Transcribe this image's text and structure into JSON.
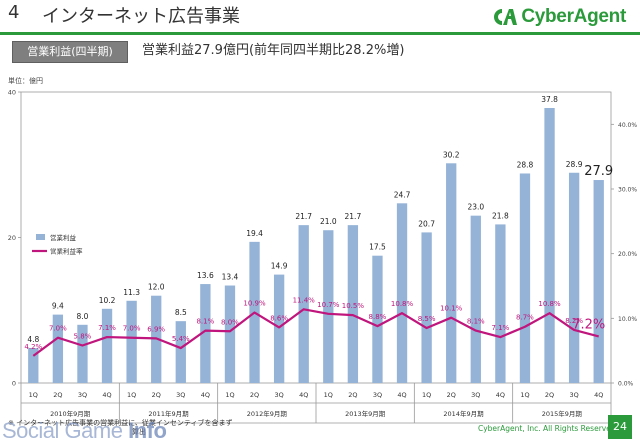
{
  "header": {
    "section_number": "4",
    "title": "インターネット広告事業",
    "logo_text": "CyberAgent"
  },
  "subtitle": {
    "badge": "営業利益(四半期)",
    "description": "営業利益27.9億円(前年同四半期比28.2%増)"
  },
  "chart_data": {
    "type": "bar",
    "unit_label": "単位：億円",
    "categories": [
      "1Q",
      "2Q",
      "3Q",
      "4Q",
      "1Q",
      "2Q",
      "3Q",
      "4Q",
      "1Q",
      "2Q",
      "3Q",
      "4Q",
      "1Q",
      "2Q",
      "3Q",
      "4Q",
      "1Q",
      "2Q",
      "3Q",
      "4Q",
      "1Q",
      "2Q",
      "3Q",
      "4Q"
    ],
    "year_groups": [
      {
        "label": "2010年9月期",
        "quarters": 4
      },
      {
        "label": "2011年9月期",
        "quarters": 4
      },
      {
        "label": "2012年9月期",
        "quarters": 4
      },
      {
        "label": "2013年9月期",
        "quarters": 4
      },
      {
        "label": "2014年9月期",
        "quarters": 4
      },
      {
        "label": "2015年9月期",
        "quarters": 4
      }
    ],
    "series": [
      {
        "name": "営業利益",
        "kind": "bar",
        "axis": "left",
        "color": "#95b3d7",
        "values": [
          4.8,
          9.4,
          8.0,
          10.2,
          11.3,
          12.0,
          8.5,
          13.6,
          13.4,
          19.4,
          14.9,
          21.7,
          21.0,
          21.7,
          17.5,
          24.7,
          20.7,
          30.2,
          23.0,
          21.8,
          28.8,
          37.8,
          28.9,
          27.9
        ],
        "labels": [
          "4.8",
          "9.4",
          "8.0",
          "10.2",
          "11.3",
          "12.0",
          "8.5",
          "13.6",
          "13.4",
          "19.4",
          "14.9",
          "21.7",
          "21.0",
          "21.7",
          "17.5",
          "24.7",
          "20.7",
          "30.2",
          "23.0",
          "21.8",
          "28.8",
          "37.8",
          "28.9",
          "27.9"
        ]
      },
      {
        "name": "営業利益率",
        "kind": "line",
        "axis": "right",
        "color": "#c0157c",
        "values": [
          4.2,
          7.0,
          5.8,
          7.1,
          7.0,
          6.9,
          5.4,
          8.1,
          8.0,
          10.9,
          8.6,
          11.4,
          10.7,
          10.5,
          8.8,
          10.8,
          8.5,
          10.1,
          8.1,
          7.1,
          8.7,
          10.8,
          8.2,
          7.2
        ],
        "labels": [
          "4.2%",
          "7.0%",
          "5.8%",
          "7.1%",
          "7.0%",
          "6.9%",
          "5.4%",
          "8.1%",
          "8.0%",
          "10.9%",
          "8.6%",
          "11.4%",
          "10.7%",
          "10.5%",
          "8.8%",
          "10.8%",
          "8.5%",
          "10.1%",
          "8.1%",
          "7.1%",
          "8.7%",
          "10.8%",
          "8.2%",
          "7.2%"
        ]
      }
    ],
    "left_axis": {
      "ylim": [
        0,
        40
      ],
      "ticks": [
        "0",
        "20",
        "40"
      ]
    },
    "right_axis": {
      "ylim": [
        0,
        45
      ],
      "ticks": [
        "0.0%",
        "10.0%",
        "20.0%",
        "30.0%",
        "40.0%"
      ]
    },
    "legend_placement": "left"
  },
  "footer": {
    "note_line1": "※ インターネット広告事業の営業利益に、従業インセンティブを含まず",
    "note_line2": "算出",
    "watermark_a": "Social Game",
    "watermark_b": "Info",
    "copyright": "CyberAgent, Inc. All Rights Reserved.",
    "page_number": "24"
  }
}
